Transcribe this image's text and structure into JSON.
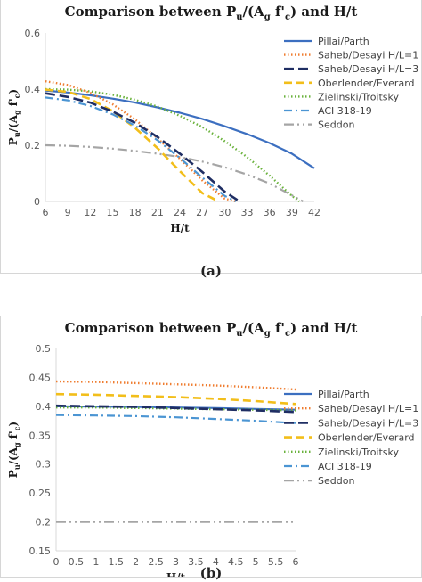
{
  "captions": [
    "(a)",
    "(b)"
  ],
  "legend_styles": [
    {
      "color": "#3c6fc0",
      "dash": "",
      "width": 2.2
    },
    {
      "color": "#ef7d30",
      "dash": "1.5 2.5",
      "width": 2.4
    },
    {
      "color": "#1f2e63",
      "dash": "11 5",
      "width": 2.6
    },
    {
      "color": "#f2be1a",
      "dash": "9 5",
      "width": 2.6
    },
    {
      "color": "#6ab23c",
      "dash": "1.5 2.5",
      "width": 2.4
    },
    {
      "color": "#4b95d3",
      "dash": "9 4 2 4",
      "width": 2.2
    },
    {
      "color": "#a5a5a5",
      "dash": "11 4 2 4 2 4",
      "width": 2.2
    }
  ],
  "chart_data": [
    {
      "type": "line",
      "title_main": "Comparison between P",
      "title_sub1": "u",
      "title_mid": "/(A",
      "title_sub2": "g",
      "title_mid2": " f'",
      "title_sub3": "c",
      "title_end": ") and H/t",
      "xlabel": "H/t",
      "ylabel": "P_u/(A_g f'_c)",
      "x_ticks": [
        "6",
        "9",
        "12",
        "15",
        "18",
        "21",
        "24",
        "27",
        "30",
        "33",
        "36",
        "39",
        "42"
      ],
      "y_ticks": [
        "0",
        "0.2",
        "0.4",
        "0.6"
      ],
      "xlim": [
        6,
        42
      ],
      "ylim": [
        0,
        0.6
      ],
      "grid": false,
      "legend_position": "right",
      "series": [
        {
          "name": "Pillai/Parth",
          "x": [
            6,
            9,
            12,
            15,
            18,
            21,
            24,
            27,
            30,
            33,
            36,
            39,
            42
          ],
          "y": [
            0.395,
            0.388,
            0.378,
            0.366,
            0.352,
            0.335,
            0.316,
            0.294,
            0.268,
            0.24,
            0.208,
            0.17,
            0.118
          ]
        },
        {
          "name": "Saheb/Desayi H/L=1",
          "x": [
            6,
            9,
            12,
            15,
            18,
            21,
            24,
            27,
            30,
            31.5
          ],
          "y": [
            0.428,
            0.415,
            0.387,
            0.346,
            0.292,
            0.225,
            0.152,
            0.075,
            0.01,
            0.0
          ]
        },
        {
          "name": "Saheb/Desayi H/L=3",
          "x": [
            6,
            9,
            12,
            15,
            18,
            21,
            24,
            27,
            30,
            32
          ],
          "y": [
            0.385,
            0.372,
            0.352,
            0.32,
            0.28,
            0.23,
            0.17,
            0.105,
            0.035,
            0.0
          ]
        },
        {
          "name": "Oberlender/Everard",
          "x": [
            6,
            9,
            12,
            15,
            18,
            21,
            24,
            27,
            29.2
          ],
          "y": [
            0.398,
            0.39,
            0.365,
            0.322,
            0.262,
            0.19,
            0.108,
            0.03,
            0.0
          ]
        },
        {
          "name": "Zielinski/Troitsky",
          "x": [
            6,
            9,
            12,
            15,
            18,
            21,
            24,
            27,
            30,
            33,
            36,
            39,
            40
          ],
          "y": [
            0.4,
            0.398,
            0.392,
            0.38,
            0.362,
            0.338,
            0.305,
            0.265,
            0.215,
            0.158,
            0.092,
            0.02,
            0.0
          ]
        },
        {
          "name": "ACI 318-19",
          "x": [
            6,
            9,
            12,
            15,
            18,
            21,
            24,
            27,
            30,
            31.5
          ],
          "y": [
            0.37,
            0.36,
            0.34,
            0.31,
            0.27,
            0.218,
            0.155,
            0.085,
            0.02,
            0.0
          ]
        },
        {
          "name": "Seddon",
          "x": [
            6,
            9,
            12,
            15,
            18,
            21,
            24,
            27,
            30,
            33,
            36,
            39,
            40.5
          ],
          "y": [
            0.2,
            0.198,
            0.194,
            0.188,
            0.18,
            0.17,
            0.158,
            0.142,
            0.122,
            0.096,
            0.064,
            0.022,
            0.0
          ]
        }
      ]
    },
    {
      "type": "line",
      "title_main": "Comparison between P",
      "title_sub1": "u",
      "title_mid": "/(A",
      "title_sub2": "g",
      "title_mid2": " f'",
      "title_sub3": "c",
      "title_end": ") and H/t",
      "xlabel": "H/t",
      "ylabel": "P_u/(A_g f'_c)",
      "x_ticks": [
        "0",
        "0.5",
        "1",
        "1.5",
        "2",
        "2.5",
        "3",
        "3.5",
        "4",
        "4.5",
        "5",
        "5.5",
        "6"
      ],
      "y_ticks": [
        "0.15",
        "0.2",
        "0.25",
        "0.3",
        "0.35",
        "0.4",
        "0.45",
        "0.5"
      ],
      "xlim": [
        0,
        6
      ],
      "ylim": [
        0.15,
        0.5
      ],
      "grid": false,
      "legend_position": "right",
      "series": [
        {
          "name": "Pillai/Parth",
          "x": [
            0,
            1,
            2,
            3,
            4,
            5,
            6
          ],
          "y": [
            0.4,
            0.3995,
            0.399,
            0.398,
            0.397,
            0.3955,
            0.394
          ]
        },
        {
          "name": "Saheb/Desayi H/L=1",
          "x": [
            0,
            1,
            2,
            3,
            4,
            5,
            6
          ],
          "y": [
            0.443,
            0.442,
            0.44,
            0.438,
            0.436,
            0.433,
            0.429
          ]
        },
        {
          "name": "Saheb/Desayi H/L=3",
          "x": [
            0,
            1,
            2,
            3,
            4,
            5,
            6
          ],
          "y": [
            0.401,
            0.4,
            0.399,
            0.397,
            0.395,
            0.393,
            0.39
          ]
        },
        {
          "name": "Oberlender/Everard",
          "x": [
            0,
            1,
            2,
            3,
            4,
            5,
            6
          ],
          "y": [
            0.421,
            0.42,
            0.418,
            0.416,
            0.413,
            0.409,
            0.404
          ]
        },
        {
          "name": "Zielinski/Troitsky",
          "x": [
            0,
            1,
            2,
            3,
            4,
            5,
            6
          ],
          "y": [
            0.398,
            0.398,
            0.397,
            0.396,
            0.395,
            0.394,
            0.393
          ]
        },
        {
          "name": "ACI 318-19",
          "x": [
            0,
            1,
            2,
            3,
            4,
            5,
            6
          ],
          "y": [
            0.385,
            0.384,
            0.383,
            0.381,
            0.378,
            0.375,
            0.371
          ]
        },
        {
          "name": "Seddon",
          "x": [
            0,
            1,
            2,
            3,
            4,
            5,
            6
          ],
          "y": [
            0.2,
            0.2,
            0.2,
            0.2,
            0.2,
            0.2,
            0.2
          ]
        }
      ]
    }
  ]
}
